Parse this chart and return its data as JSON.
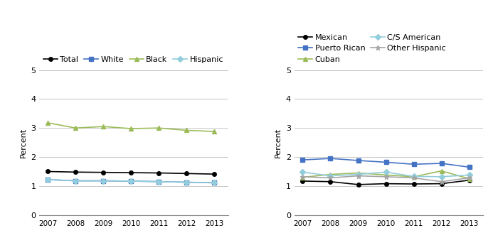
{
  "years": [
    2007,
    2008,
    2009,
    2010,
    2011,
    2012,
    2013
  ],
  "left": {
    "Total": [
      1.5,
      1.48,
      1.47,
      1.46,
      1.45,
      1.43,
      1.41
    ],
    "White": [
      1.22,
      1.18,
      1.18,
      1.17,
      1.15,
      1.13,
      1.11
    ],
    "Black": [
      3.18,
      3.0,
      3.05,
      2.98,
      3.0,
      2.92,
      2.88
    ],
    "Hispanic": [
      1.22,
      1.18,
      1.18,
      1.17,
      1.15,
      1.13,
      1.11
    ]
  },
  "left_colors": {
    "Total": "#000000",
    "White": "#4472C4",
    "Black": "#9BBB59",
    "Hispanic": "#92CDDC"
  },
  "left_markers": {
    "Total": "+",
    "White": "+",
    "Black": "+",
    "Hispanic": "+"
  },
  "right": {
    "Mexican": [
      1.17,
      1.15,
      1.05,
      1.08,
      1.07,
      1.08,
      1.2
    ],
    "Puerto Rican": [
      1.9,
      1.95,
      1.88,
      1.82,
      1.75,
      1.78,
      1.65
    ],
    "Cuban": [
      1.3,
      1.4,
      1.45,
      1.38,
      1.32,
      1.52,
      1.25
    ],
    "C/S American": [
      1.48,
      1.35,
      1.4,
      1.48,
      1.33,
      1.32,
      1.38
    ],
    "Other Hispanic": [
      1.32,
      1.28,
      1.35,
      1.32,
      1.28,
      1.15,
      1.28
    ]
  },
  "right_colors": {
    "Mexican": "#000000",
    "Puerto Rican": "#4472C4",
    "Cuban": "#9BBB59",
    "C/S American": "#92CDDC",
    "Other Hispanic": "#A5A5A5"
  },
  "right_markers": {
    "Mexican": "+",
    "Puerto Rican": "+",
    "Cuban": "+",
    "C/S American": "+",
    "Other Hispanic": "+"
  },
  "ylabel": "Percent",
  "ylim": [
    0,
    5
  ],
  "yticks": [
    0,
    1,
    2,
    3,
    4,
    5
  ],
  "background_color": "#ffffff",
  "grid_color": "#bbbbbb",
  "figsize": [
    6.93,
    3.52
  ],
  "dpi": 100
}
